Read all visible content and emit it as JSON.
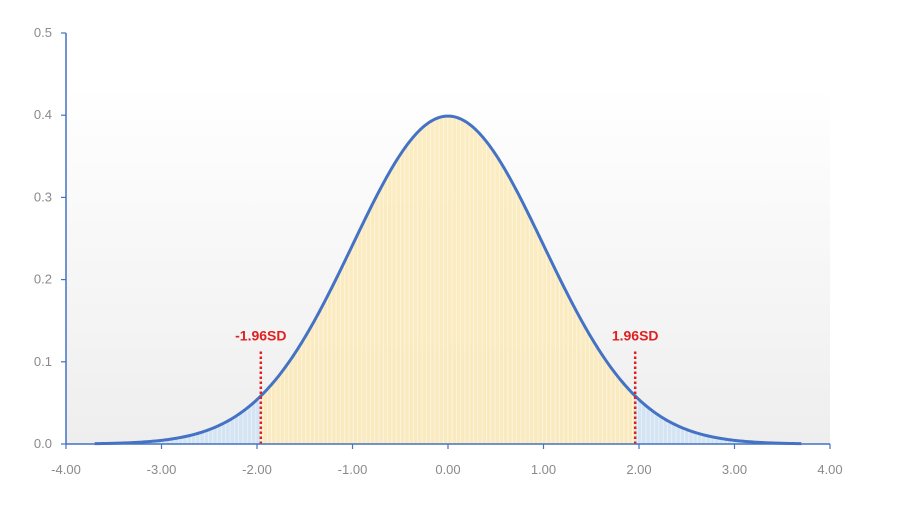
{
  "chart_data": {
    "type": "area",
    "title": "",
    "xlabel": "",
    "ylabel": "",
    "xlim": [
      -4,
      4
    ],
    "ylim": [
      0,
      0.5
    ],
    "x_ticks": [
      -4,
      -3,
      -2,
      -1,
      0,
      1,
      2,
      3,
      4
    ],
    "x_tick_labels": [
      "-4.00",
      "-3.00",
      "-2.00",
      "-1.00",
      "0.00",
      "1.00",
      "2.00",
      "3.00",
      "4.00"
    ],
    "y_ticks": [
      0,
      0.1,
      0.2,
      0.3,
      0.4,
      0.5
    ],
    "y_tick_labels": [
      "0.0",
      "0.1",
      "0.2",
      "0.3",
      "0.4",
      "0.5"
    ],
    "grid": false,
    "legend": "none",
    "curve": {
      "distribution": "standard normal density",
      "mean": 0,
      "sd": 1,
      "x_range": [
        -3.7,
        3.7
      ],
      "points": [
        {
          "x": -3.7,
          "y": 0.0004
        },
        {
          "x": -3.5,
          "y": 0.0009
        },
        {
          "x": -3.0,
          "y": 0.0044
        },
        {
          "x": -2.5,
          "y": 0.0175
        },
        {
          "x": -2.0,
          "y": 0.054
        },
        {
          "x": -1.96,
          "y": 0.0584
        },
        {
          "x": -1.5,
          "y": 0.1295
        },
        {
          "x": -1.0,
          "y": 0.242
        },
        {
          "x": -0.5,
          "y": 0.3521
        },
        {
          "x": 0.0,
          "y": 0.3989
        },
        {
          "x": 0.5,
          "y": 0.3521
        },
        {
          "x": 1.0,
          "y": 0.242
        },
        {
          "x": 1.5,
          "y": 0.1295
        },
        {
          "x": 1.96,
          "y": 0.0584
        },
        {
          "x": 2.0,
          "y": 0.054
        },
        {
          "x": 2.5,
          "y": 0.0175
        },
        {
          "x": 3.0,
          "y": 0.0044
        },
        {
          "x": 3.5,
          "y": 0.0009
        },
        {
          "x": 3.7,
          "y": 0.0004
        }
      ]
    },
    "regions": [
      {
        "from": -3.7,
        "to": -1.96,
        "color": "#cfe2f3"
      },
      {
        "from": -1.96,
        "to": 1.96,
        "color": "#fbe9b7"
      },
      {
        "from": 1.96,
        "to": 3.7,
        "color": "#cfe2f3"
      }
    ],
    "annotations": [
      {
        "label": "-1.96SD",
        "x": -1.96,
        "y_top": 0.115
      },
      {
        "label": "1.96SD",
        "x": 1.96,
        "y_top": 0.115
      }
    ],
    "colors": {
      "curve": "#4472c4",
      "axis": "#4472c4",
      "annotation": "#e02020",
      "tick_text": "#8a8a8a",
      "plot_bg_top": "#ffffff",
      "plot_bg_bottom": "#eeeeee"
    }
  }
}
